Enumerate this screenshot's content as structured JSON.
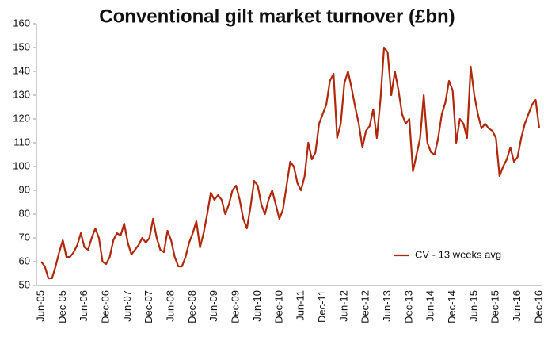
{
  "chart_data": {
    "type": "line",
    "title": "Conventional gilt market turnover (£bn)",
    "categories": [
      "Jun-05",
      null,
      null,
      null,
      null,
      null,
      "Dec-05",
      null,
      null,
      null,
      null,
      null,
      "Jun-06",
      null,
      null,
      null,
      null,
      null,
      "Dec-06",
      null,
      null,
      null,
      null,
      null,
      "Jun-07",
      null,
      null,
      null,
      null,
      null,
      "Dec-07",
      null,
      null,
      null,
      null,
      null,
      "Jun-08",
      null,
      null,
      null,
      null,
      null,
      "Dec-08",
      null,
      null,
      null,
      null,
      null,
      "Jun-09",
      null,
      null,
      null,
      null,
      null,
      "Dec-09",
      null,
      null,
      null,
      null,
      null,
      "Jun-10",
      null,
      null,
      null,
      null,
      null,
      "Dec-10",
      null,
      null,
      null,
      null,
      null,
      "Jun-11",
      null,
      null,
      null,
      null,
      null,
      "Dec-11",
      null,
      null,
      null,
      null,
      null,
      "Jun-12",
      null,
      null,
      null,
      null,
      null,
      "Dec-12",
      null,
      null,
      null,
      null,
      null,
      "Jun-13",
      null,
      null,
      null,
      null,
      null,
      "Dec-13",
      null,
      null,
      null,
      null,
      null,
      "Jun-14",
      null,
      null,
      null,
      null,
      null,
      "Dec-14",
      null,
      null,
      null,
      null,
      null,
      "Jun-15",
      null,
      null,
      null,
      null,
      null,
      "Dec-15",
      null,
      null,
      null,
      null,
      null,
      "Jun-16",
      null,
      null,
      null,
      null,
      null,
      "Dec-16"
    ],
    "series": [
      {
        "name": "CV - 13 weeks avg",
        "color": "#b0280c",
        "values": [
          60,
          58,
          53,
          53,
          58,
          64,
          69,
          62,
          62,
          64,
          67,
          72,
          66,
          65,
          70,
          74,
          70,
          60,
          59,
          62,
          69,
          72,
          71,
          76,
          68,
          63,
          65,
          67,
          70,
          68,
          70,
          78,
          70,
          65,
          64,
          73,
          69,
          62,
          58,
          58,
          62,
          68,
          72,
          77,
          66,
          72,
          80,
          89,
          86,
          88,
          86,
          80,
          84,
          90,
          92,
          86,
          78,
          74,
          83,
          94,
          92,
          84,
          80,
          86,
          90,
          84,
          78,
          82,
          92,
          102,
          100,
          93,
          90,
          96,
          110,
          103,
          106,
          118,
          122,
          126,
          136,
          139,
          112,
          118,
          135,
          140,
          133,
          125,
          118,
          108,
          115,
          117,
          124,
          112,
          128,
          150,
          148,
          130,
          140,
          132,
          122,
          118,
          120,
          98,
          105,
          112,
          130,
          110,
          106,
          105,
          112,
          122,
          127,
          136,
          132,
          110,
          120,
          118,
          112,
          142,
          130,
          122,
          116,
          118,
          116,
          115,
          112,
          96,
          100,
          103,
          108,
          102,
          104,
          112,
          118,
          122,
          126,
          128,
          116
        ]
      }
    ],
    "ylim": [
      50,
      160
    ],
    "yticks": [
      50,
      60,
      70,
      80,
      90,
      100,
      110,
      120,
      130,
      140,
      150,
      160
    ],
    "legend": "lower right"
  }
}
